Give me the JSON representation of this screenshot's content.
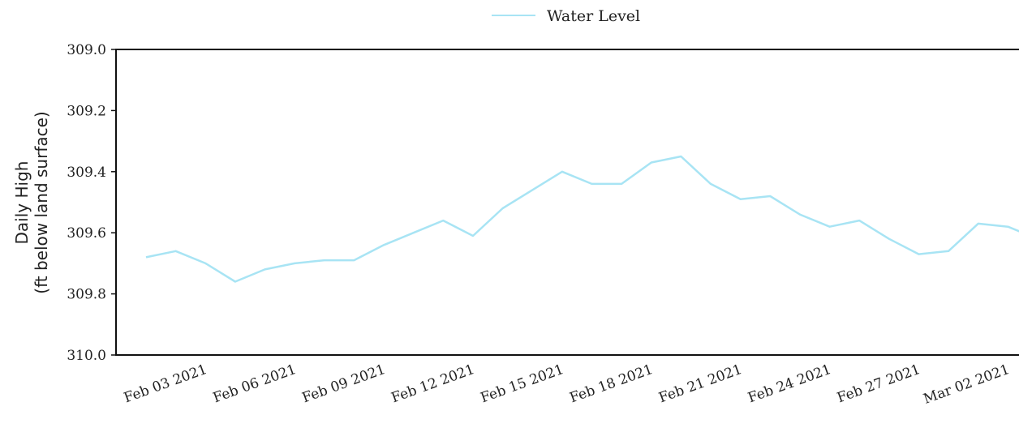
{
  "chart_data": {
    "type": "line",
    "ylabel": "Daily High",
    "ylabel_sub": "(ft below land surface)",
    "ylim": [
      309.0,
      310.0
    ],
    "y_inverted": true,
    "grid": false,
    "legend_position": "top-center",
    "y_ticks": [
      {
        "value": 309.0,
        "label": "309.0"
      },
      {
        "value": 309.2,
        "label": "309.2"
      },
      {
        "value": 309.4,
        "label": "309.4"
      },
      {
        "value": 309.6,
        "label": "309.6"
      },
      {
        "value": 309.8,
        "label": "309.8"
      },
      {
        "value": 310.0,
        "label": "310.0"
      }
    ],
    "x_ticks": [
      {
        "date": "2021-02-03",
        "label": "Feb 03 2021"
      },
      {
        "date": "2021-02-06",
        "label": "Feb 06 2021"
      },
      {
        "date": "2021-02-09",
        "label": "Feb 09 2021"
      },
      {
        "date": "2021-02-12",
        "label": "Feb 12 2021"
      },
      {
        "date": "2021-02-15",
        "label": "Feb 15 2021"
      },
      {
        "date": "2021-02-18",
        "label": "Feb 18 2021"
      },
      {
        "date": "2021-02-21",
        "label": "Feb 21 2021"
      },
      {
        "date": "2021-02-24",
        "label": "Feb 24 2021"
      },
      {
        "date": "2021-02-27",
        "label": "Feb 27 2021"
      },
      {
        "date": "2021-03-02",
        "label": "Mar 02 2021"
      }
    ],
    "xlim": [
      "2021-02-01",
      "2021-03-03"
    ],
    "series": [
      {
        "name": "Water Level",
        "color": "#a8e4f4",
        "points": [
          {
            "x": "2021-02-01",
            "y": 309.68
          },
          {
            "x": "2021-02-02",
            "y": 309.66
          },
          {
            "x": "2021-02-03",
            "y": 309.7
          },
          {
            "x": "2021-02-04",
            "y": 309.76
          },
          {
            "x": "2021-02-05",
            "y": 309.72
          },
          {
            "x": "2021-02-06",
            "y": 309.7
          },
          {
            "x": "2021-02-07",
            "y": 309.69
          },
          {
            "x": "2021-02-08",
            "y": 309.69
          },
          {
            "x": "2021-02-09",
            "y": 309.64
          },
          {
            "x": "2021-02-10",
            "y": 309.6
          },
          {
            "x": "2021-02-11",
            "y": 309.56
          },
          {
            "x": "2021-02-12",
            "y": 309.61
          },
          {
            "x": "2021-02-13",
            "y": 309.52
          },
          {
            "x": "2021-02-14",
            "y": 309.46
          },
          {
            "x": "2021-02-15",
            "y": 309.4
          },
          {
            "x": "2021-02-16",
            "y": 309.44
          },
          {
            "x": "2021-02-17",
            "y": 309.44
          },
          {
            "x": "2021-02-18",
            "y": 309.37
          },
          {
            "x": "2021-02-19",
            "y": 309.35
          },
          {
            "x": "2021-02-20",
            "y": 309.44
          },
          {
            "x": "2021-02-21",
            "y": 309.49
          },
          {
            "x": "2021-02-22",
            "y": 309.48
          },
          {
            "x": "2021-02-23",
            "y": 309.54
          },
          {
            "x": "2021-02-24",
            "y": 309.58
          },
          {
            "x": "2021-02-25",
            "y": 309.56
          },
          {
            "x": "2021-02-26",
            "y": 309.62
          },
          {
            "x": "2021-02-27",
            "y": 309.67
          },
          {
            "x": "2021-02-28",
            "y": 309.66
          },
          {
            "x": "2021-03-01",
            "y": 309.57
          },
          {
            "x": "2021-03-02",
            "y": 309.58
          },
          {
            "x": "2021-03-03",
            "y": 309.62
          }
        ]
      }
    ]
  }
}
